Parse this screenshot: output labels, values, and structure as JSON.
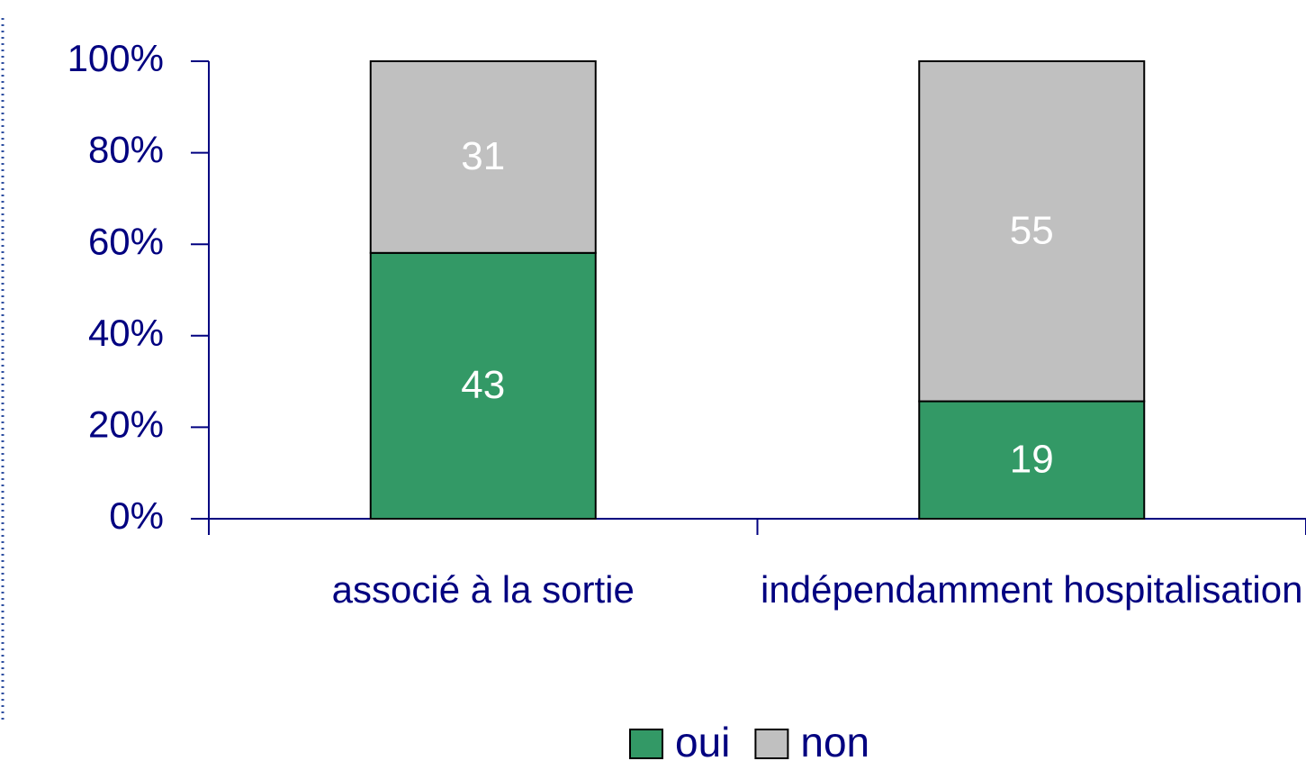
{
  "chart_data": {
    "type": "bar",
    "stacked": "percent",
    "categories": [
      "associé à la sortie",
      "indépendamment hospitalisation"
    ],
    "series": [
      {
        "name": "oui",
        "color": "#339966",
        "values": [
          43,
          19
        ]
      },
      {
        "name": "non",
        "color": "#c0c0c0",
        "values": [
          31,
          55
        ]
      }
    ],
    "ylim": [
      0,
      100
    ],
    "yticks": [
      {
        "value": 0,
        "label": "0%"
      },
      {
        "value": 20,
        "label": "20%"
      },
      {
        "value": 40,
        "label": "40%"
      },
      {
        "value": 60,
        "label": "60%"
      },
      {
        "value": 80,
        "label": "80%"
      },
      {
        "value": 100,
        "label": "100%"
      }
    ],
    "grid": false,
    "legend": "bottom"
  }
}
